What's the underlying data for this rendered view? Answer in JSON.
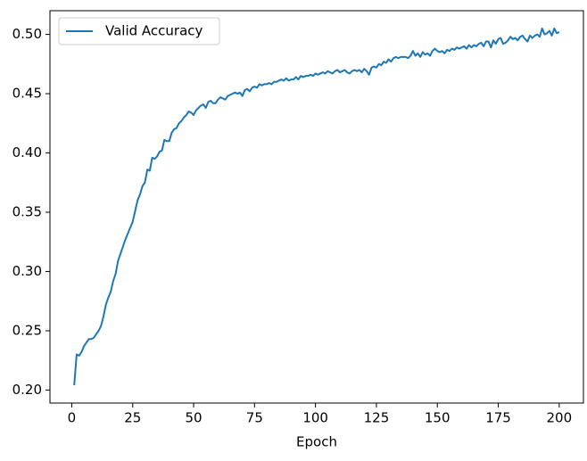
{
  "chart_data": {
    "type": "line",
    "xlabel": "Epoch",
    "legend": "upper left",
    "grid": false,
    "xlim": [
      -8.95,
      209.95
    ],
    "xticks": [
      0,
      25,
      50,
      75,
      100,
      125,
      150,
      175,
      200
    ],
    "ylim": [
      0.189,
      0.52
    ],
    "yticks": [
      {
        "value": 0.2,
        "label": "0.20"
      },
      {
        "value": 0.25,
        "label": "0.25"
      },
      {
        "value": 0.3,
        "label": "0.30"
      },
      {
        "value": 0.35,
        "label": "0.35"
      },
      {
        "value": 0.4,
        "label": "0.40"
      },
      {
        "value": 0.45,
        "label": "0.45"
      },
      {
        "value": 0.5,
        "label": "0.50"
      }
    ],
    "x": [
      1,
      2,
      3,
      4,
      5,
      6,
      7,
      8,
      9,
      10,
      11,
      12,
      13,
      14,
      15,
      16,
      17,
      18,
      19,
      20,
      21,
      22,
      23,
      24,
      25,
      26,
      27,
      28,
      29,
      30,
      31,
      32,
      33,
      34,
      35,
      36,
      37,
      38,
      39,
      40,
      41,
      42,
      43,
      44,
      45,
      46,
      47,
      48,
      49,
      50,
      51,
      52,
      53,
      54,
      55,
      56,
      57,
      58,
      59,
      60,
      61,
      62,
      63,
      64,
      65,
      66,
      67,
      68,
      69,
      70,
      71,
      72,
      73,
      74,
      75,
      76,
      77,
      78,
      79,
      80,
      81,
      82,
      83,
      84,
      85,
      86,
      87,
      88,
      89,
      90,
      91,
      92,
      93,
      94,
      95,
      96,
      97,
      98,
      99,
      100,
      101,
      102,
      103,
      104,
      105,
      106,
      107,
      108,
      109,
      110,
      111,
      112,
      113,
      114,
      115,
      116,
      117,
      118,
      119,
      120,
      121,
      122,
      123,
      124,
      125,
      126,
      127,
      128,
      129,
      130,
      131,
      132,
      133,
      134,
      135,
      136,
      137,
      138,
      139,
      140,
      141,
      142,
      143,
      144,
      145,
      146,
      147,
      148,
      149,
      150,
      151,
      152,
      153,
      154,
      155,
      156,
      157,
      158,
      159,
      160,
      161,
      162,
      163,
      164,
      165,
      166,
      167,
      168,
      169,
      170,
      171,
      172,
      173,
      174,
      175,
      176,
      177,
      178,
      179,
      180,
      181,
      182,
      183,
      184,
      185,
      186,
      187,
      188,
      189,
      190,
      191,
      192,
      193,
      194,
      195,
      196,
      197,
      198,
      199,
      200
    ],
    "series": [
      {
        "name": "Valid Accuracy",
        "color": "#1f77b4",
        "values": [
          0.204,
          0.23,
          0.229,
          0.232,
          0.237,
          0.24,
          0.243,
          0.243,
          0.244,
          0.247,
          0.25,
          0.254,
          0.262,
          0.272,
          0.278,
          0.283,
          0.292,
          0.298,
          0.309,
          0.315,
          0.321,
          0.327,
          0.332,
          0.337,
          0.342,
          0.351,
          0.36,
          0.365,
          0.372,
          0.375,
          0.386,
          0.385,
          0.396,
          0.395,
          0.397,
          0.401,
          0.402,
          0.411,
          0.41,
          0.41,
          0.417,
          0.42,
          0.421,
          0.425,
          0.427,
          0.43,
          0.432,
          0.435,
          0.434,
          0.432,
          0.436,
          0.438,
          0.44,
          0.441,
          0.438,
          0.443,
          0.444,
          0.442,
          0.442,
          0.445,
          0.447,
          0.446,
          0.445,
          0.448,
          0.449,
          0.45,
          0.451,
          0.45,
          0.451,
          0.448,
          0.453,
          0.454,
          0.452,
          0.455,
          0.456,
          0.455,
          0.458,
          0.457,
          0.458,
          0.458,
          0.459,
          0.458,
          0.46,
          0.46,
          0.461,
          0.462,
          0.461,
          0.463,
          0.461,
          0.462,
          0.462,
          0.464,
          0.462,
          0.465,
          0.464,
          0.465,
          0.465,
          0.466,
          0.465,
          0.467,
          0.466,
          0.467,
          0.468,
          0.467,
          0.469,
          0.468,
          0.467,
          0.469,
          0.47,
          0.468,
          0.469,
          0.47,
          0.468,
          0.467,
          0.469,
          0.47,
          0.469,
          0.47,
          0.468,
          0.471,
          0.469,
          0.466,
          0.472,
          0.473,
          0.472,
          0.475,
          0.474,
          0.477,
          0.476,
          0.479,
          0.477,
          0.48,
          0.481,
          0.48,
          0.481,
          0.481,
          0.481,
          0.48,
          0.482,
          0.486,
          0.482,
          0.484,
          0.481,
          0.485,
          0.483,
          0.484,
          0.482,
          0.486,
          0.488,
          0.486,
          0.485,
          0.486,
          0.484,
          0.487,
          0.486,
          0.488,
          0.487,
          0.489,
          0.488,
          0.489,
          0.49,
          0.488,
          0.491,
          0.489,
          0.491,
          0.49,
          0.492,
          0.493,
          0.49,
          0.494,
          0.494,
          0.489,
          0.495,
          0.492,
          0.496,
          0.497,
          0.492,
          0.493,
          0.495,
          0.498,
          0.496,
          0.497,
          0.495,
          0.498,
          0.499,
          0.496,
          0.494,
          0.499,
          0.497,
          0.499,
          0.5,
          0.498,
          0.505,
          0.5,
          0.501,
          0.503,
          0.499,
          0.505,
          0.501,
          0.502
        ]
      }
    ]
  }
}
